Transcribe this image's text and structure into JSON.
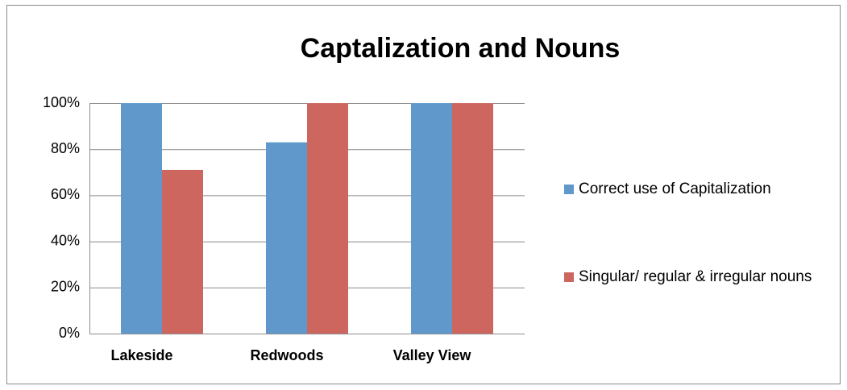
{
  "chart_data": {
    "type": "bar",
    "title": "Captalization and Nouns",
    "categories": [
      "Lakeside",
      "Redwoods",
      "Valley View"
    ],
    "series": [
      {
        "name": "Correct use of Capitalization",
        "color": "#6198cc",
        "values": [
          100,
          83,
          100
        ]
      },
      {
        "name": "Singular/ regular & irregular nouns",
        "color": "#cd665f",
        "values": [
          71,
          100,
          100
        ]
      }
    ],
    "ylim": [
      0,
      100
    ],
    "yticks": [
      {
        "value": 0,
        "label": "0%"
      },
      {
        "value": 20,
        "label": "20%"
      },
      {
        "value": 40,
        "label": "40%"
      },
      {
        "value": 60,
        "label": "60%"
      },
      {
        "value": 80,
        "label": "80%"
      },
      {
        "value": 100,
        "label": "100%"
      }
    ],
    "grid": true,
    "legend": "right"
  }
}
